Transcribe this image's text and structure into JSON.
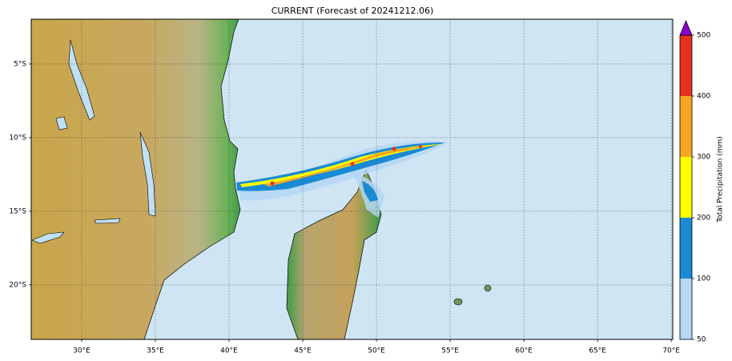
{
  "map": {
    "title": "CURRENT (Forecast of 20241212.06)",
    "xlim": [
      26.58,
      70.1
    ],
    "ylim": [
      -23.7,
      -1.96
    ],
    "xticks": [
      {
        "value": 30,
        "label": "30°E"
      },
      {
        "value": 35,
        "label": "35°E"
      },
      {
        "value": 40,
        "label": "40°E"
      },
      {
        "value": 45,
        "label": "45°E"
      },
      {
        "value": 50,
        "label": "50°E"
      },
      {
        "value": 55,
        "label": "55°E"
      },
      {
        "value": 60,
        "label": "60°E"
      },
      {
        "value": 65,
        "label": "65°E"
      },
      {
        "value": 70,
        "label": "70°E"
      }
    ],
    "yticks": [
      {
        "value": -5,
        "label": "5°S"
      },
      {
        "value": -10,
        "label": "10°S"
      },
      {
        "value": -15,
        "label": "15°S"
      },
      {
        "value": -20,
        "label": "20°S"
      }
    ],
    "grid": true,
    "colorbar": {
      "label": "Total Precipitation (mm)",
      "levels": [
        50,
        100,
        200,
        300,
        400,
        500
      ],
      "colors": [
        "#b4d7f5",
        "#1a8ad4",
        "#ffff00",
        "#f5a623",
        "#e8311f"
      ],
      "extend_color": "#8a00d4"
    }
  }
}
